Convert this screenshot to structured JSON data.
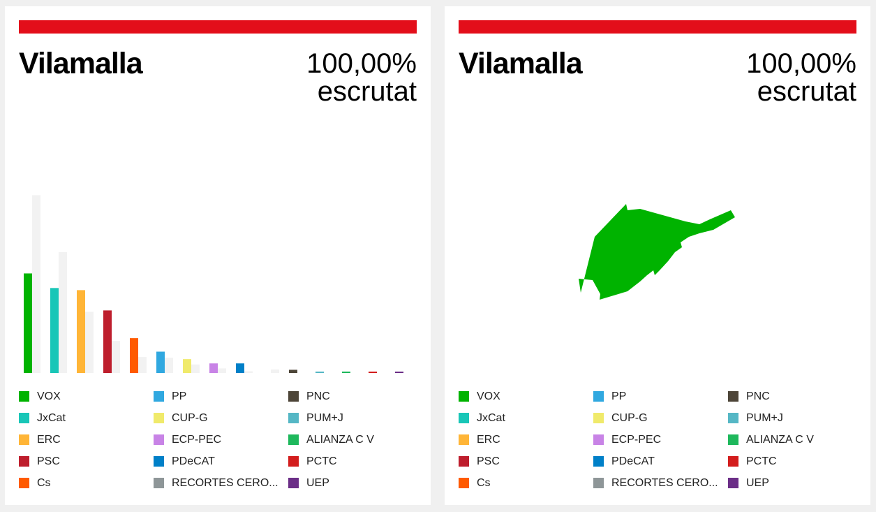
{
  "panels": [
    {
      "title": "Vilamalla",
      "percent": "100,00%",
      "scrutiny_label": "escrutat"
    },
    {
      "title": "Vilamalla",
      "percent": "100,00%",
      "scrutiny_label": "escrutat"
    }
  ],
  "chart_data": {
    "type": "bar",
    "categories": [
      "VOX",
      "JxCat",
      "ERC",
      "PSC",
      "Cs",
      "PP",
      "CUP-G",
      "ECP-PEC",
      "PDeCAT",
      "RECORTES CERO...",
      "PNC",
      "PUM+J",
      "ALIANZA C V",
      "PCTC",
      "UEP"
    ],
    "series": [
      {
        "values": [
          28.0,
          23.9,
          23.3,
          17.6,
          9.8,
          6.0,
          3.9,
          2.7,
          2.7,
          0.0,
          0.9,
          0.4,
          0.4,
          0.2,
          0.2
        ]
      },
      {
        "values": [
          50.0,
          34.0,
          17.2,
          9.0,
          4.5,
          4.3,
          2.4,
          1.3,
          0.5,
          1.0,
          0.0,
          0.0,
          0.0,
          0.0,
          0.0
        ]
      }
    ],
    "colors": [
      "#00b300",
      "#19c6b7",
      "#ffb537",
      "#be1e2d",
      "#ff5a00",
      "#30a8e0",
      "#f0ea6b",
      "#c883e6",
      "#0080c8",
      "#8e9698",
      "#4d4538",
      "#55b7c5",
      "#1eb85c",
      "#d31d1d",
      "#6b2e87"
    ],
    "previous_color": "#f2f2f2",
    "ylim": [
      0,
      55
    ],
    "grid": false,
    "legend_position": "bottom"
  },
  "legend": [
    {
      "label": "VOX",
      "color": "#00b300"
    },
    {
      "label": "JxCat",
      "color": "#19c6b7"
    },
    {
      "label": "ERC",
      "color": "#ffb537"
    },
    {
      "label": "PSC",
      "color": "#be1e2d"
    },
    {
      "label": "Cs",
      "color": "#ff5a00"
    },
    {
      "label": "PP",
      "color": "#30a8e0"
    },
    {
      "label": "CUP-G",
      "color": "#f0ea6b"
    },
    {
      "label": "ECP-PEC",
      "color": "#c883e6"
    },
    {
      "label": "PDeCAT",
      "color": "#0080c8"
    },
    {
      "label": "RECORTES CERO...",
      "color": "#8e9698"
    },
    {
      "label": "PNC",
      "color": "#4d4538"
    },
    {
      "label": "PUM+J",
      "color": "#55b7c5"
    },
    {
      "label": "ALIANZA C V",
      "color": "#1eb85c"
    },
    {
      "label": "PCTC",
      "color": "#d31d1d"
    },
    {
      "label": "UEP",
      "color": "#6b2e87"
    }
  ],
  "map": {
    "winner": "VOX",
    "color": "#00b300"
  }
}
